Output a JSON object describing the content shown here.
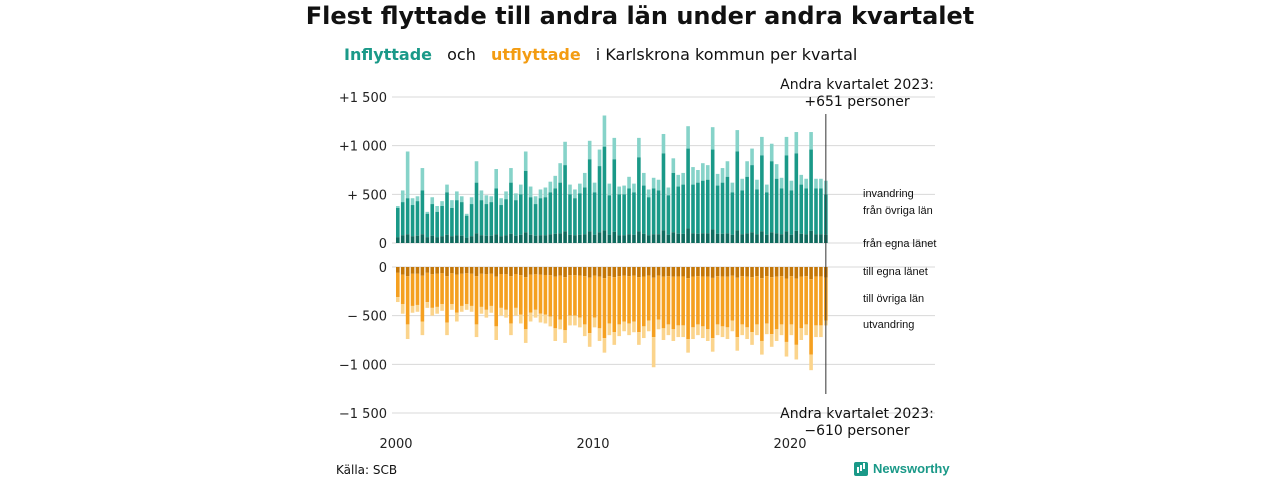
{
  "title": "Flest flyttade till andra län under andra kvartalet",
  "subtitle": {
    "in_word": "Inflyttade",
    "och": "och",
    "out_word": "utflyttade",
    "rest": "i Karlskrona kommun per kvartal"
  },
  "colors": {
    "in_dark": "#0f6b5e",
    "in_mid": "#1a9988",
    "in_light": "#86d3c9",
    "out_dark": "#c47606",
    "out_mid": "#f5a020",
    "out_light": "#fbd48c"
  },
  "source": "Källa: SCB",
  "logo": "Newsworthy",
  "chart_data": {
    "type": "bar",
    "stacked": true,
    "x_ticks": [
      "2000",
      "2010",
      "2020"
    ],
    "top_ticks": [
      "+1 500",
      "+1 000",
      "+ 500",
      "0"
    ],
    "bottom_ticks": [
      "0",
      "− 500",
      "−1 000",
      "−1 500"
    ],
    "top_ylim": [
      0,
      1500
    ],
    "bottom_ylim": [
      -1500,
      0
    ],
    "grid": true,
    "top_annotation": [
      "Andra kvartalet 2023:",
      "+651 personer"
    ],
    "bottom_annotation": [
      "Andra kvartalet 2023:",
      "−610 personer"
    ],
    "series_labels": {
      "in_light": "invandring",
      "in_mid": "från övriga län",
      "in_dark": "från egna länet",
      "out_dark": "till egna länet",
      "out_mid": "till övriga län",
      "out_light": "utvandring"
    },
    "quarters_start": "2000 Q1",
    "inflow_total": [
      380,
      540,
      940,
      460,
      480,
      770,
      320,
      470,
      380,
      430,
      600,
      440,
      530,
      480,
      300,
      470,
      840,
      540,
      490,
      480,
      760,
      460,
      530,
      770,
      510,
      600,
      940,
      580,
      480,
      550,
      570,
      630,
      690,
      820,
      1040,
      600,
      550,
      610,
      720,
      1050,
      620,
      960,
      1310,
      610,
      1080,
      580,
      590,
      680,
      610,
      1080,
      720,
      550,
      670,
      650,
      1120,
      570,
      870,
      700,
      720,
      1200,
      780,
      750,
      820,
      800,
      1190,
      710,
      770,
      840,
      620,
      1160,
      660,
      840,
      970,
      650,
      1090,
      600,
      1020,
      810,
      670,
      1090,
      640,
      1140,
      700,
      660,
      1140,
      660,
      660,
      640
    ],
    "inflow_other": [
      360,
      420,
      460,
      390,
      430,
      540,
      300,
      400,
      320,
      380,
      520,
      360,
      440,
      420,
      280,
      400,
      620,
      440,
      400,
      420,
      560,
      390,
      450,
      620,
      440,
      500,
      740,
      470,
      400,
      460,
      470,
      520,
      560,
      620,
      800,
      500,
      460,
      510,
      570,
      860,
      520,
      790,
      990,
      490,
      860,
      500,
      500,
      560,
      520,
      880,
      590,
      470,
      560,
      540,
      920,
      490,
      720,
      580,
      600,
      970,
      600,
      620,
      640,
      650,
      960,
      590,
      620,
      680,
      520,
      940,
      540,
      680,
      800,
      550,
      900,
      520,
      840,
      660,
      560,
      900,
      540,
      920,
      600,
      560,
      960,
      560,
      560,
      500
    ],
    "inflow_own": [
      60,
      80,
      90,
      70,
      75,
      90,
      60,
      75,
      60,
      70,
      85,
      70,
      80,
      75,
      55,
      70,
      100,
      80,
      75,
      75,
      90,
      70,
      80,
      95,
      75,
      85,
      110,
      85,
      75,
      80,
      80,
      90,
      95,
      100,
      120,
      85,
      80,
      85,
      90,
      120,
      85,
      110,
      130,
      85,
      115,
      80,
      80,
      90,
      85,
      120,
      95,
      80,
      90,
      90,
      130,
      85,
      110,
      95,
      95,
      150,
      100,
      95,
      100,
      100,
      140,
      95,
      95,
      100,
      85,
      130,
      90,
      100,
      110,
      90,
      120,
      85,
      110,
      100,
      90,
      120,
      85,
      125,
      95,
      90,
      125,
      90,
      90,
      85
    ],
    "outflow_total": [
      -360,
      -480,
      -740,
      -470,
      -460,
      -700,
      -420,
      -500,
      -480,
      -450,
      -700,
      -440,
      -560,
      -460,
      -440,
      -460,
      -720,
      -480,
      -520,
      -470,
      -750,
      -500,
      -520,
      -700,
      -500,
      -580,
      -780,
      -560,
      -520,
      -570,
      -580,
      -610,
      -760,
      -640,
      -780,
      -600,
      -600,
      -620,
      -710,
      -820,
      -620,
      -760,
      -880,
      -700,
      -800,
      -710,
      -660,
      -700,
      -670,
      -800,
      -730,
      -660,
      -1030,
      -640,
      -750,
      -700,
      -760,
      -720,
      -720,
      -880,
      -740,
      -700,
      -730,
      -760,
      -870,
      -700,
      -720,
      -740,
      -660,
      -860,
      -700,
      -740,
      -800,
      -700,
      -900,
      -690,
      -820,
      -760,
      -700,
      -920,
      -700,
      -950,
      -750,
      -700,
      -1060,
      -720,
      -720,
      -600
    ],
    "outflow_other": [
      -310,
      -380,
      -590,
      -400,
      -390,
      -560,
      -360,
      -420,
      -410,
      -380,
      -570,
      -380,
      -470,
      -400,
      -380,
      -400,
      -590,
      -410,
      -440,
      -400,
      -610,
      -420,
      -440,
      -580,
      -420,
      -490,
      -640,
      -470,
      -440,
      -480,
      -490,
      -510,
      -630,
      -540,
      -650,
      -500,
      -500,
      -520,
      -590,
      -680,
      -520,
      -630,
      -730,
      -580,
      -670,
      -590,
      -560,
      -580,
      -560,
      -670,
      -610,
      -550,
      -720,
      -540,
      -630,
      -590,
      -640,
      -600,
      -600,
      -740,
      -620,
      -590,
      -610,
      -640,
      -730,
      -590,
      -610,
      -620,
      -550,
      -720,
      -590,
      -620,
      -670,
      -590,
      -760,
      -580,
      -690,
      -640,
      -590,
      -770,
      -590,
      -800,
      -630,
      -590,
      -900,
      -600,
      -600,
      -550
    ],
    "outflow_own": [
      -60,
      -80,
      -95,
      -70,
      -70,
      -90,
      -60,
      -75,
      -70,
      -65,
      -95,
      -65,
      -80,
      -70,
      -65,
      -70,
      -95,
      -70,
      -75,
      -70,
      -100,
      -72,
      -75,
      -95,
      -72,
      -85,
      -105,
      -80,
      -75,
      -80,
      -82,
      -85,
      -100,
      -90,
      -105,
      -85,
      -85,
      -88,
      -95,
      -110,
      -88,
      -100,
      -115,
      -95,
      -105,
      -95,
      -90,
      -95,
      -90,
      -105,
      -98,
      -90,
      -110,
      -88,
      -100,
      -95,
      -100,
      -97,
      -97,
      -115,
      -98,
      -95,
      -97,
      -100,
      -112,
      -95,
      -97,
      -100,
      -90,
      -110,
      -95,
      -100,
      -105,
      -95,
      -115,
      -93,
      -105,
      -100,
      -95,
      -118,
      -95,
      -120,
      -98,
      -95,
      -125,
      -97,
      -97,
      -110
    ]
  }
}
